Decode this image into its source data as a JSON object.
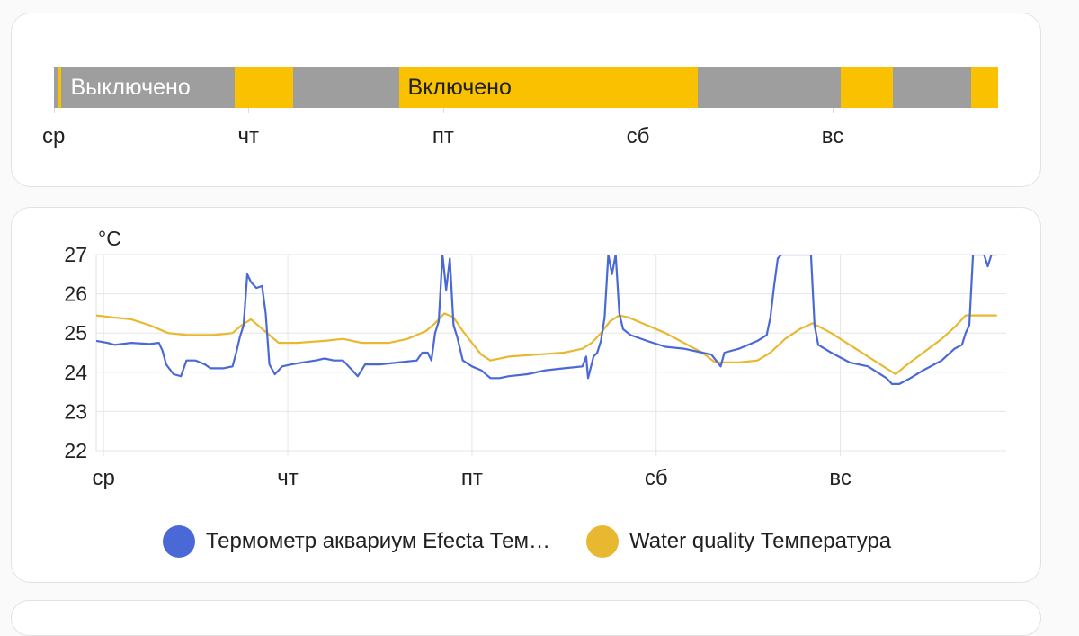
{
  "timeline": {
    "days": [
      "ср",
      "чт",
      "пт",
      "сб",
      "вс"
    ],
    "states": {
      "off": "Выключено",
      "on": "Включено"
    },
    "segments": [
      {
        "state": "off",
        "from": 0.0,
        "to": 0.0203
      },
      {
        "state": "on",
        "from": 0.0203,
        "to": 0.0406
      },
      {
        "state": "off",
        "from": 0.0406,
        "to": 0.9307
      },
      {
        "state": "on",
        "from": 0.9307,
        "to": 1.2277
      },
      {
        "state": "off",
        "from": 1.2277,
        "to": 1.7723
      },
      {
        "state": "on",
        "from": 1.7723,
        "to": 3.3094
      },
      {
        "state": "off",
        "from": 3.3094,
        "to": 4.0396
      },
      {
        "state": "on",
        "from": 4.0396,
        "to": 4.3069
      },
      {
        "state": "off",
        "from": 4.3069,
        "to": 4.7129
      },
      {
        "state": "on",
        "from": 4.7129,
        "to": 4.8515
      }
    ],
    "colors": {
      "off": "#9e9e9e",
      "on": "#f9c100"
    }
  },
  "chart_data": {
    "type": "line",
    "unit": "°C",
    "x_categories": [
      "ср",
      "чт",
      "пт",
      "сб",
      "вс"
    ],
    "xlim": [
      -0.04,
      4.9
    ],
    "ylim": [
      22,
      27
    ],
    "yticks": [
      22,
      23,
      24,
      25,
      26,
      27
    ],
    "grid": true,
    "legend_position": "bottom",
    "series": [
      {
        "name": "Термометр аквариум Efecta Температура",
        "legend_label": "Термометр аквариум Efecta Тем…",
        "color": "#4a69d6",
        "points": [
          [
            -0.04,
            24.8
          ],
          [
            0.02,
            24.75
          ],
          [
            0.06,
            24.7
          ],
          [
            0.15,
            24.75
          ],
          [
            0.25,
            24.72
          ],
          [
            0.3,
            24.75
          ],
          [
            0.32,
            24.55
          ],
          [
            0.34,
            24.2
          ],
          [
            0.38,
            23.95
          ],
          [
            0.42,
            23.9
          ],
          [
            0.45,
            24.3
          ],
          [
            0.5,
            24.3
          ],
          [
            0.55,
            24.2
          ],
          [
            0.58,
            24.1
          ],
          [
            0.65,
            24.1
          ],
          [
            0.7,
            24.15
          ],
          [
            0.72,
            24.5
          ],
          [
            0.74,
            24.9
          ],
          [
            0.76,
            25.2
          ],
          [
            0.78,
            26.5
          ],
          [
            0.8,
            26.3
          ],
          [
            0.83,
            26.15
          ],
          [
            0.86,
            26.2
          ],
          [
            0.88,
            25.5
          ],
          [
            0.9,
            24.2
          ],
          [
            0.93,
            23.95
          ],
          [
            0.97,
            24.15
          ],
          [
            1.02,
            24.2
          ],
          [
            1.08,
            24.25
          ],
          [
            1.15,
            24.3
          ],
          [
            1.2,
            24.35
          ],
          [
            1.25,
            24.3
          ],
          [
            1.3,
            24.3
          ],
          [
            1.35,
            24.05
          ],
          [
            1.38,
            23.9
          ],
          [
            1.42,
            24.2
          ],
          [
            1.5,
            24.2
          ],
          [
            1.6,
            24.25
          ],
          [
            1.7,
            24.3
          ],
          [
            1.73,
            24.5
          ],
          [
            1.76,
            24.5
          ],
          [
            1.78,
            24.3
          ],
          [
            1.8,
            25.0
          ],
          [
            1.82,
            25.3
          ],
          [
            1.84,
            27.0
          ],
          [
            1.86,
            26.1
          ],
          [
            1.88,
            26.9
          ],
          [
            1.9,
            25.2
          ],
          [
            1.92,
            24.9
          ],
          [
            1.95,
            24.3
          ],
          [
            2.0,
            24.15
          ],
          [
            2.05,
            24.05
          ],
          [
            2.1,
            23.85
          ],
          [
            2.15,
            23.85
          ],
          [
            2.2,
            23.9
          ],
          [
            2.3,
            23.95
          ],
          [
            2.4,
            24.05
          ],
          [
            2.5,
            24.1
          ],
          [
            2.6,
            24.15
          ],
          [
            2.62,
            24.4
          ],
          [
            2.63,
            23.85
          ],
          [
            2.66,
            24.4
          ],
          [
            2.68,
            24.5
          ],
          [
            2.7,
            24.8
          ],
          [
            2.72,
            25.4
          ],
          [
            2.74,
            27.0
          ],
          [
            2.76,
            26.5
          ],
          [
            2.78,
            27.0
          ],
          [
            2.8,
            25.5
          ],
          [
            2.82,
            25.1
          ],
          [
            2.86,
            24.95
          ],
          [
            2.95,
            24.8
          ],
          [
            3.05,
            24.65
          ],
          [
            3.15,
            24.6
          ],
          [
            3.25,
            24.5
          ],
          [
            3.3,
            24.45
          ],
          [
            3.35,
            24.15
          ],
          [
            3.37,
            24.5
          ],
          [
            3.45,
            24.6
          ],
          [
            3.55,
            24.8
          ],
          [
            3.6,
            24.95
          ],
          [
            3.62,
            25.4
          ],
          [
            3.64,
            26.2
          ],
          [
            3.66,
            26.9
          ],
          [
            3.68,
            27.0
          ],
          [
            3.7,
            27.0
          ],
          [
            3.84,
            27.0
          ],
          [
            3.86,
            25.2
          ],
          [
            3.88,
            24.7
          ],
          [
            3.95,
            24.5
          ],
          [
            4.05,
            24.25
          ],
          [
            4.15,
            24.15
          ],
          [
            4.2,
            24.0
          ],
          [
            4.25,
            23.85
          ],
          [
            4.28,
            23.7
          ],
          [
            4.32,
            23.7
          ],
          [
            4.38,
            23.85
          ],
          [
            4.45,
            24.05
          ],
          [
            4.55,
            24.3
          ],
          [
            4.62,
            24.6
          ],
          [
            4.66,
            24.7
          ],
          [
            4.68,
            25.0
          ],
          [
            4.7,
            25.2
          ],
          [
            4.72,
            27.0
          ],
          [
            4.75,
            27.0
          ],
          [
            4.78,
            27.0
          ],
          [
            4.8,
            26.7
          ],
          [
            4.82,
            27.0
          ],
          [
            4.85,
            27.0
          ]
        ]
      },
      {
        "name": "Water quality Температура",
        "legend_label": "Water quality Температура",
        "color": "#e8b830",
        "points": [
          [
            -0.04,
            25.45
          ],
          [
            0.05,
            25.4
          ],
          [
            0.15,
            25.35
          ],
          [
            0.25,
            25.2
          ],
          [
            0.35,
            25.0
          ],
          [
            0.45,
            24.95
          ],
          [
            0.6,
            24.95
          ],
          [
            0.7,
            25.0
          ],
          [
            0.75,
            25.2
          ],
          [
            0.8,
            25.35
          ],
          [
            0.85,
            25.15
          ],
          [
            0.9,
            24.95
          ],
          [
            0.95,
            24.75
          ],
          [
            1.05,
            24.75
          ],
          [
            1.2,
            24.8
          ],
          [
            1.3,
            24.85
          ],
          [
            1.4,
            24.75
          ],
          [
            1.55,
            24.75
          ],
          [
            1.65,
            24.85
          ],
          [
            1.75,
            25.05
          ],
          [
            1.8,
            25.25
          ],
          [
            1.85,
            25.5
          ],
          [
            1.9,
            25.4
          ],
          [
            1.95,
            25.05
          ],
          [
            2.0,
            24.75
          ],
          [
            2.05,
            24.45
          ],
          [
            2.1,
            24.3
          ],
          [
            2.2,
            24.4
          ],
          [
            2.35,
            24.45
          ],
          [
            2.5,
            24.5
          ],
          [
            2.6,
            24.6
          ],
          [
            2.65,
            24.75
          ],
          [
            2.7,
            25.0
          ],
          [
            2.75,
            25.3
          ],
          [
            2.8,
            25.45
          ],
          [
            2.85,
            25.4
          ],
          [
            2.95,
            25.2
          ],
          [
            3.05,
            25.0
          ],
          [
            3.15,
            24.75
          ],
          [
            3.25,
            24.5
          ],
          [
            3.32,
            24.25
          ],
          [
            3.45,
            24.25
          ],
          [
            3.55,
            24.3
          ],
          [
            3.62,
            24.5
          ],
          [
            3.7,
            24.85
          ],
          [
            3.78,
            25.1
          ],
          [
            3.85,
            25.25
          ],
          [
            3.95,
            25.0
          ],
          [
            4.05,
            24.7
          ],
          [
            4.15,
            24.4
          ],
          [
            4.25,
            24.1
          ],
          [
            4.3,
            23.95
          ],
          [
            4.35,
            24.15
          ],
          [
            4.45,
            24.5
          ],
          [
            4.55,
            24.85
          ],
          [
            4.62,
            25.15
          ],
          [
            4.68,
            25.45
          ],
          [
            4.75,
            25.45
          ],
          [
            4.85,
            25.45
          ]
        ]
      }
    ]
  }
}
